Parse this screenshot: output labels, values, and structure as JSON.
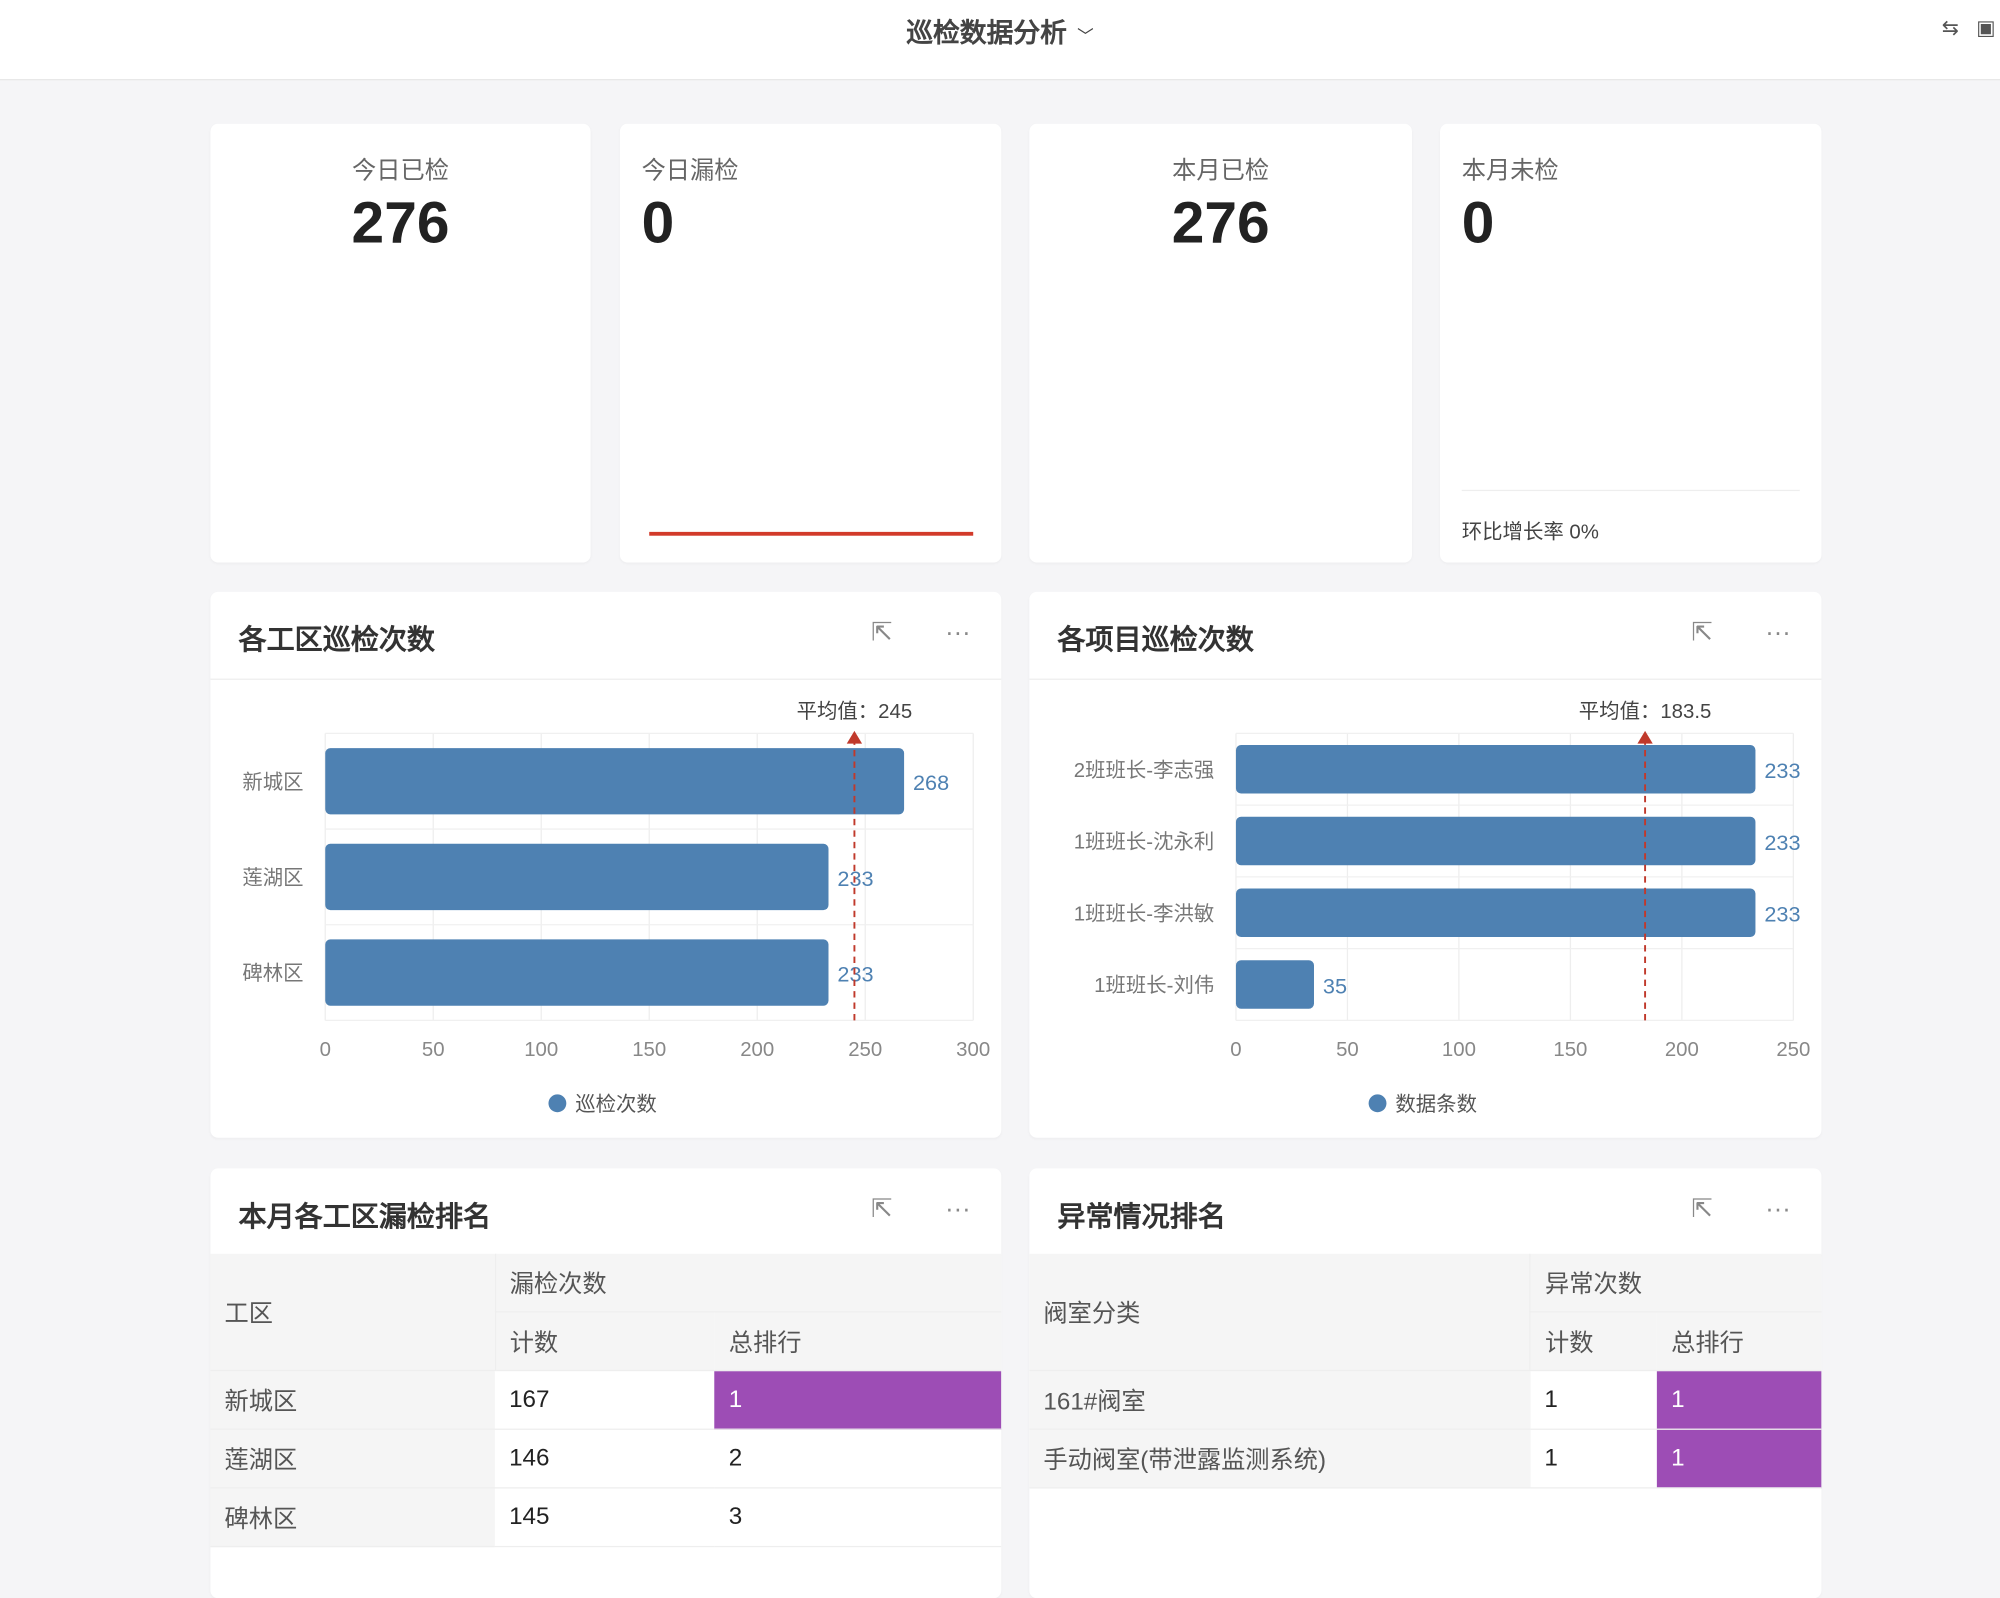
{
  "header": {
    "title": "巡检数据分析",
    "icons": [
      "swap-circle-icon",
      "fullscreen-icon"
    ]
  },
  "stats": [
    {
      "label": "今日已检",
      "value": "276"
    },
    {
      "label": "今日漏检",
      "value": "0"
    },
    {
      "label": "本月已检",
      "value": "276"
    },
    {
      "label": "本月未检",
      "value": "0",
      "footer": "环比增长率 0%"
    }
  ],
  "colors": {
    "bar": "#4e81b2",
    "avg_line": "#c0392b",
    "rank_highlight": "#9d4db5",
    "progress_line": "#d23a2a"
  },
  "chart_data": [
    {
      "type": "bar",
      "orientation": "horizontal",
      "title": "各工区巡检次数",
      "categories": [
        "新城区",
        "莲湖区",
        "碑林区"
      ],
      "series": [
        {
          "name": "巡检次数",
          "values": [
            268,
            233,
            233
          ]
        }
      ],
      "xlim": [
        0,
        300
      ],
      "ticks": [
        0,
        50,
        100,
        150,
        200,
        250,
        300
      ],
      "average": {
        "label": "平均值：245",
        "value": 245
      },
      "legend": "bottom",
      "grid": true
    },
    {
      "type": "bar",
      "orientation": "horizontal",
      "title": "各项目巡检次数",
      "categories": [
        "2班班长-李志强",
        "1班班长-沈永利",
        "1班班长-李洪敏",
        "1班班长-刘伟"
      ],
      "series": [
        {
          "name": "数据条数",
          "values": [
            233,
            233,
            233,
            35
          ]
        }
      ],
      "xlim": [
        0,
        250
      ],
      "ticks": [
        0,
        50,
        100,
        150,
        200,
        250
      ],
      "average": {
        "label": "平均值：183.5",
        "value": 183.5
      },
      "legend": "bottom",
      "grid": true
    }
  ],
  "tables": [
    {
      "title": "本月各工区漏检排名",
      "col0": "工区",
      "group": "漏检次数",
      "sub": [
        "计数",
        "总排行"
      ],
      "rows": [
        [
          "新城区",
          "167",
          "1"
        ],
        [
          "莲湖区",
          "146",
          "2"
        ],
        [
          "碑林区",
          "145",
          "3"
        ]
      ]
    },
    {
      "title": "异常情况排名",
      "col0": "阀室分类",
      "group": "异常次数",
      "sub": [
        "计数",
        "总排行"
      ],
      "rows": [
        [
          "161#阀室",
          "1",
          "1"
        ],
        [
          "手动阀室(带泄露监测系统)",
          "1",
          "1"
        ]
      ]
    }
  ]
}
